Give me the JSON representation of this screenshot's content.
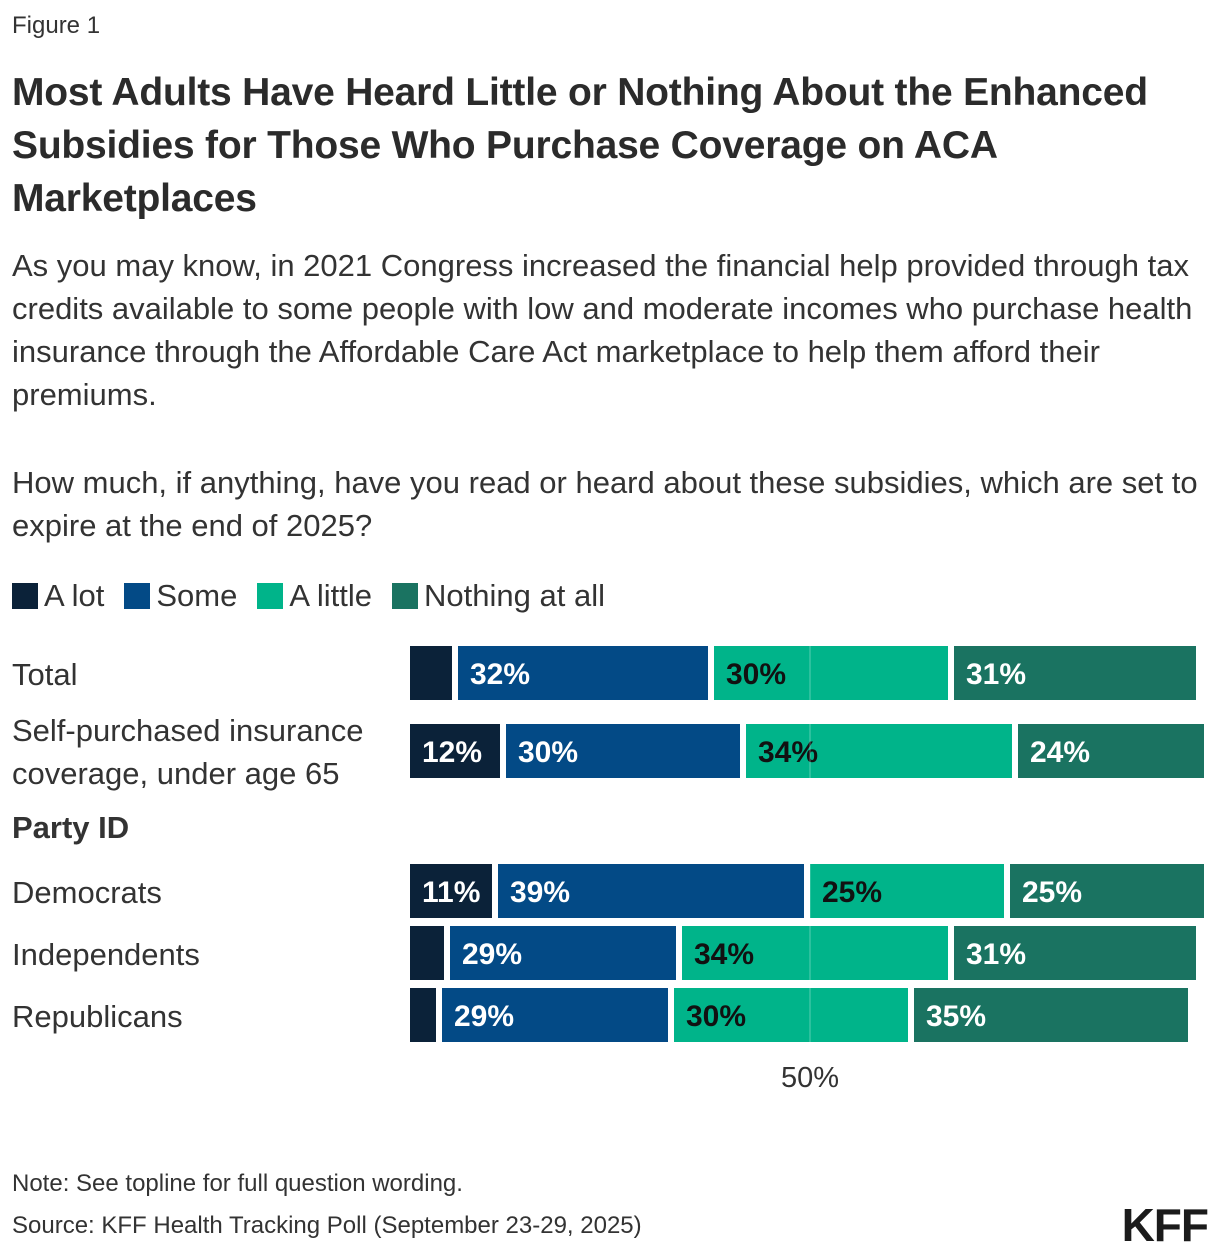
{
  "figure_label": "Figure 1",
  "title": "Most Adults Have Heard Little or Nothing About the Enhanced Subsidies for Those Who Purchase Coverage on ACA Marketplaces",
  "subtitle": "As you may know, in 2021 Congress increased the financial help provided through tax credits available to some people with low and moderate incomes who purchase health insurance through the Affordable Care Act marketplace to help them afford their premiums.",
  "question": "How much, if anything, have you read or heard about these subsidies, which are set to expire at the end of 2025?",
  "colors": {
    "a_lot": "#0b2239",
    "some": "#034a86",
    "a_little": "#00b48a",
    "nothing": "#1a7361"
  },
  "group_heading": "Party ID",
  "note": "Note: See topline for full question wording.",
  "source": "Source: KFF Health Tracking Poll (September 23-29, 2025)",
  "logo": "KFF",
  "chart_data": {
    "type": "bar",
    "orientation": "horizontal",
    "stacked": true,
    "xlim": [
      0,
      100
    ],
    "xtick_value": 50,
    "xtick_label": "50%",
    "legend": [
      "A lot",
      "Some",
      "A little",
      "Nothing at all"
    ],
    "legend_position": "top-left",
    "categories": [
      "Total",
      "Self-purchased insurance coverage, under age 65",
      "Democrats",
      "Independents",
      "Republicans"
    ],
    "series": [
      {
        "name": "A lot",
        "values": [
          6,
          12,
          11,
          5,
          4
        ],
        "labels": [
          "",
          "12%",
          "11%",
          "",
          ""
        ]
      },
      {
        "name": "Some",
        "values": [
          32,
          30,
          39,
          29,
          29
        ],
        "labels": [
          "32%",
          "30%",
          "39%",
          "29%",
          "29%"
        ]
      },
      {
        "name": "A little",
        "values": [
          30,
          34,
          25,
          34,
          30
        ],
        "labels": [
          "30%",
          "34%",
          "25%",
          "34%",
          "30%"
        ]
      },
      {
        "name": "Nothing at all",
        "values": [
          31,
          24,
          25,
          31,
          35
        ],
        "labels": [
          "31%",
          "24%",
          "25%",
          "31%",
          "35%"
        ]
      }
    ]
  }
}
